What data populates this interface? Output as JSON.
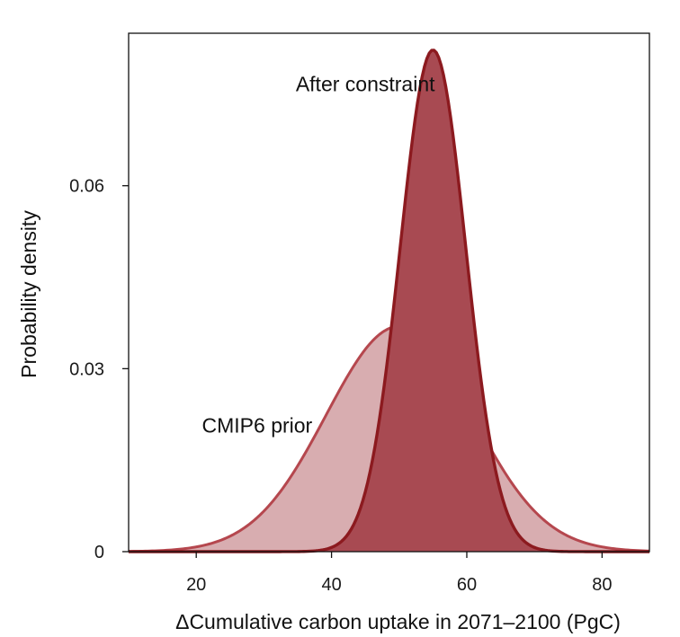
{
  "chart_data": {
    "type": "area",
    "title": "",
    "xlabel": "ΔCumulative carbon uptake in 2071–2100 (PgC)",
    "ylabel": "Probability density",
    "xlim": [
      10,
      87
    ],
    "ylim": [
      0,
      0.085
    ],
    "xticks": [
      20,
      40,
      60,
      80
    ],
    "xtick_labels": [
      "20",
      "40",
      "60",
      "80"
    ],
    "yticks": [
      0,
      0.03,
      0.06
    ],
    "ytick_labels": [
      "0",
      "0.03",
      "0.06"
    ],
    "grid": false,
    "legend": "none",
    "series": [
      {
        "name": "CMIP6 prior",
        "color": "#b5474e",
        "fill": "#d8adb0",
        "distribution": "normal",
        "mean": 50,
        "sd": 10.8,
        "x_range": [
          10,
          87
        ]
      },
      {
        "name": "After constraint",
        "color": "#8c1a1f",
        "fill": "#a84a52",
        "distribution": "normal",
        "mean": 55,
        "sd": 4.85,
        "x_range": [
          10,
          87
        ]
      }
    ],
    "annotations": [
      {
        "text": "After constraint",
        "x": 45,
        "y": 0.0755,
        "anchor": "middle"
      },
      {
        "text": "CMIP6 prior",
        "x": 29,
        "y": 0.0195,
        "anchor": "middle"
      }
    ]
  }
}
